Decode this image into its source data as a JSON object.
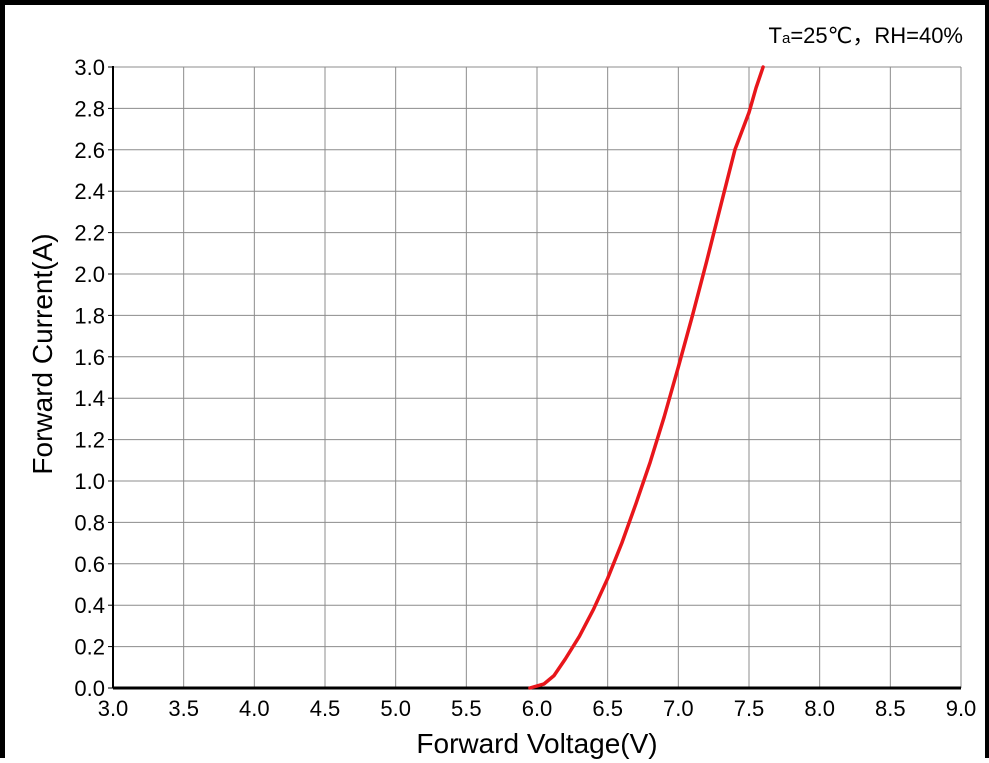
{
  "chart_data": {
    "type": "line",
    "annotation": {
      "prefix": "T",
      "subscript": "a",
      "suffix": "=25℃，RH=40%"
    },
    "xlabel": "Forward Voltage(V)",
    "ylabel": "Forward Current(A)",
    "xlim": [
      3.0,
      9.0
    ],
    "ylim": [
      0.0,
      3.0
    ],
    "xticks": [
      "3.0",
      "3.5",
      "4.0",
      "4.5",
      "5.0",
      "5.5",
      "6.0",
      "6.5",
      "7.0",
      "7.5",
      "8.0",
      "8.5",
      "9.0"
    ],
    "yticks": [
      "0.0",
      "0.2",
      "0.4",
      "0.6",
      "0.8",
      "1.0",
      "1.2",
      "1.4",
      "1.6",
      "1.8",
      "2.0",
      "2.2",
      "2.4",
      "2.6",
      "2.8",
      "3.0"
    ],
    "grid": true,
    "colors": {
      "series": "#e8161b",
      "grid": "#8c8c8c",
      "axis": "#000000"
    },
    "series": [
      {
        "x": [
          5.95,
          6.05,
          6.12,
          6.2,
          6.3,
          6.4,
          6.5,
          6.6,
          6.7,
          6.8,
          6.9,
          7.0,
          7.1,
          7.2,
          7.3,
          7.4,
          7.5,
          7.55,
          7.6
        ],
        "y": [
          0.0,
          0.02,
          0.06,
          0.14,
          0.25,
          0.38,
          0.53,
          0.7,
          0.89,
          1.09,
          1.31,
          1.55,
          1.8,
          2.06,
          2.33,
          2.6,
          2.78,
          2.9,
          3.0
        ]
      }
    ]
  }
}
